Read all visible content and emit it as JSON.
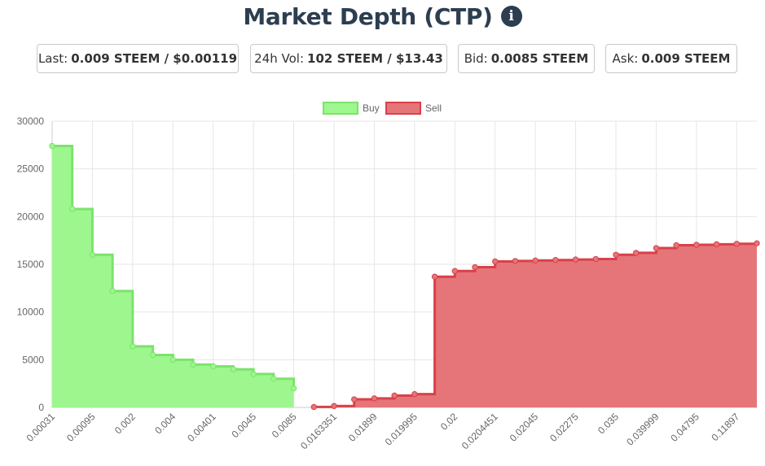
{
  "header": {
    "title": "Market Depth (CTP)",
    "info_icon": "info-circle-icon"
  },
  "stats": {
    "last_label": "Last:",
    "last_value": "0.009 STEEM / $0.00119",
    "vol_label": "24h Vol:",
    "vol_value": "102 STEEM / $13.43",
    "bid_label": "Bid:",
    "bid_value": "0.0085 STEEM",
    "ask_label": "Ask:",
    "ask_value": "0.009 STEEM"
  },
  "chart_data": {
    "type": "area",
    "title": "",
    "xlabel": "",
    "ylabel": "",
    "ylim": [
      0,
      30000
    ],
    "y_ticks": [
      0,
      5000,
      10000,
      15000,
      20000,
      25000,
      30000
    ],
    "legend_position": "top-center",
    "grid": true,
    "x_tick_labels": [
      "0.00031",
      "0.00095",
      "0.002",
      "0.004",
      "0.00401",
      "0.0045",
      "0.0085",
      "0.0163351",
      "0.01899",
      "0.019995",
      "0.02",
      "0.0204451",
      "0.02045",
      "0.02275",
      "0.035",
      "0.039999",
      "0.04795",
      "0.11897"
    ],
    "series": [
      {
        "name": "Buy",
        "color": "#9ef68f",
        "stroke": "#7be36a",
        "points": [
          27400,
          20800,
          16000,
          12200,
          6400,
          5500,
          5000,
          4500,
          4300,
          4000,
          3500,
          3000,
          2000
        ]
      },
      {
        "name": "Sell",
        "color": "#e57579",
        "stroke": "#d9404a",
        "points": [
          50,
          150,
          850,
          950,
          1250,
          1400,
          13700,
          14300,
          14700,
          15300,
          15350,
          15400,
          15450,
          15500,
          15550,
          16000,
          16200,
          16700,
          17000,
          17050,
          17100,
          17150,
          17200
        ]
      }
    ]
  }
}
